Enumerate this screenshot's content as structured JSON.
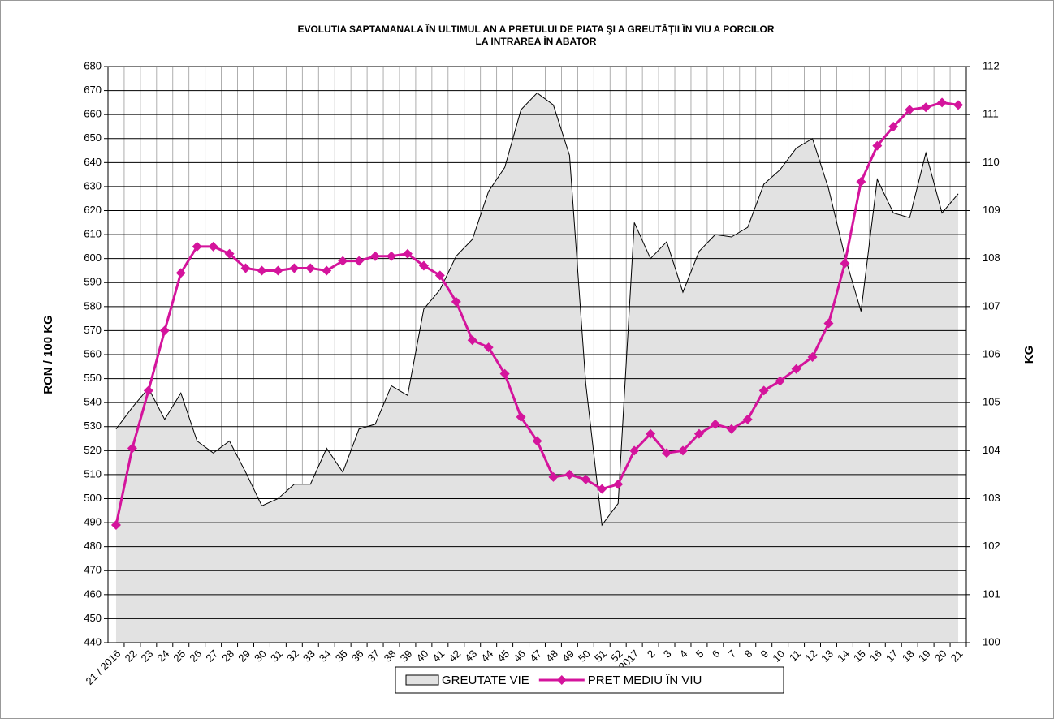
{
  "chart_data": {
    "type": "line",
    "title": [
      "EVOLUTIA SAPTAMANALA ÎN ULTIMUL AN A PRETULUI  DE PIATA ŞI A GREUTĂŢII  ÎN VIU A PORCILOR",
      "LA INTRAREA ÎN ABATOR"
    ],
    "y_label": "RON / 100 KG",
    "y2_label": "KG",
    "categories": [
      "21 / 2016",
      "22",
      "23",
      "24",
      "25",
      "26",
      "27",
      "28",
      "29",
      "30",
      "31",
      "32",
      "33",
      "34",
      "35",
      "36",
      "37",
      "38",
      "39",
      "40",
      "41",
      "42",
      "43",
      "44",
      "45",
      "46",
      "47",
      "48",
      "49",
      "50",
      "51",
      "52",
      "1 / 2017",
      "2",
      "3",
      "4",
      "5",
      "6",
      "7",
      "8",
      "9",
      "10",
      "11",
      "12",
      "13",
      "14",
      "15",
      "16",
      "17",
      "18",
      "19",
      "20",
      "21"
    ],
    "series": [
      {
        "name": "GREUTATE VIE",
        "type": "area",
        "axis": "y2",
        "color": "#e2e2e2",
        "values": [
          104.45,
          104.9,
          105.3,
          104.65,
          105.2,
          104.2,
          103.95,
          104.2,
          103.55,
          102.85,
          103.0,
          103.3,
          103.3,
          104.05,
          103.55,
          104.45,
          104.55,
          105.35,
          105.15,
          106.95,
          107.35,
          108.05,
          108.4,
          109.4,
          109.9,
          111.1,
          111.45,
          111.2,
          110.15,
          105.4,
          102.45,
          102.9,
          108.75,
          108.0,
          108.35,
          107.3,
          108.15,
          108.5,
          108.45,
          108.65,
          109.55,
          109.85,
          110.3,
          110.5,
          109.45,
          108.05,
          106.9,
          109.65,
          108.95,
          108.85,
          110.2,
          108.95,
          109.35
        ]
      },
      {
        "name": "PRET MEDIU ÎN VIU",
        "type": "line",
        "color": "#d4149c",
        "values": [
          489,
          521,
          545,
          570,
          594,
          605,
          605,
          602,
          596,
          595,
          595,
          596,
          596,
          595,
          599,
          599,
          601,
          601,
          602,
          597,
          593,
          582,
          566,
          563,
          552,
          534,
          524,
          509,
          510,
          508,
          504,
          506,
          520,
          527,
          519,
          520,
          527,
          531,
          529,
          533,
          545,
          549,
          554,
          559,
          573,
          598,
          632,
          647,
          655,
          662,
          663,
          665,
          664
        ]
      }
    ],
    "ylim": [
      440,
      680
    ],
    "yticks": [
      440,
      450,
      460,
      470,
      480,
      490,
      500,
      510,
      520,
      530,
      540,
      550,
      560,
      570,
      580,
      590,
      600,
      610,
      620,
      630,
      640,
      650,
      660,
      670,
      680
    ],
    "y2lim": [
      100,
      112
    ],
    "y2ticks": [
      100,
      101,
      102,
      103,
      104,
      105,
      106,
      107,
      108,
      109,
      110,
      111,
      112
    ],
    "grid": true,
    "legend": "bottom"
  }
}
